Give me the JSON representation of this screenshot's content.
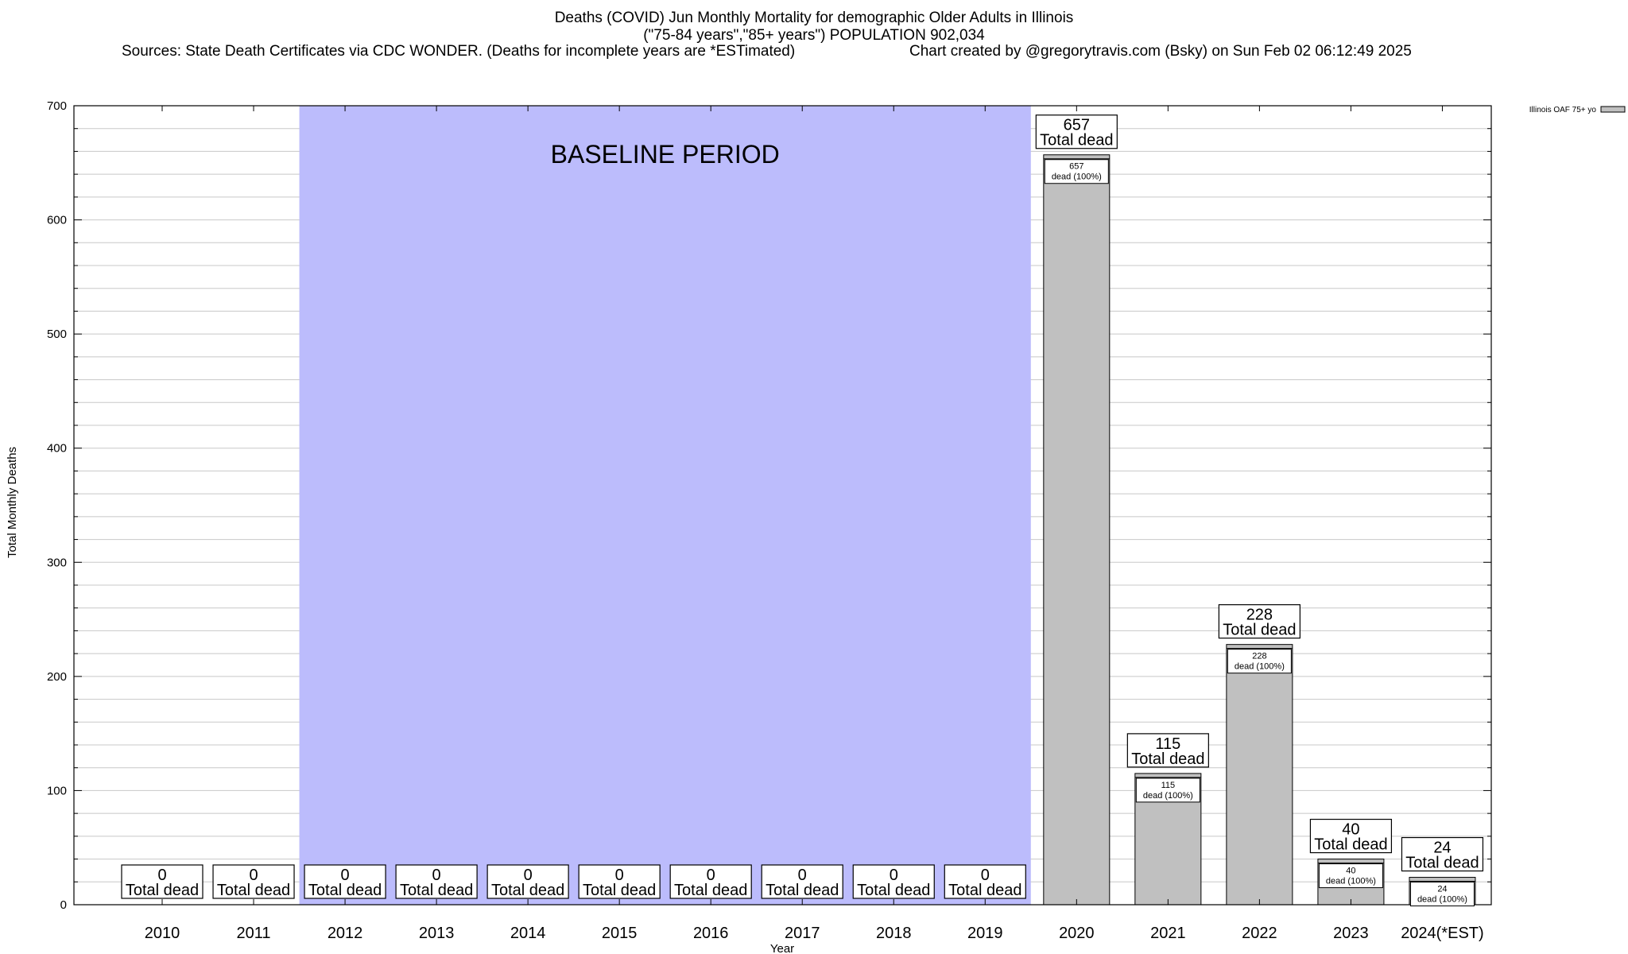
{
  "chart_data": {
    "type": "bar",
    "title": "Deaths (COVID) Jun Monthly Mortality for demographic Older Adults in Illinois",
    "subtitle": "(\"75-84 years\",\"85+ years\") POPULATION 902,034",
    "sources": "Sources: State Death Certificates via CDC WONDER. (Deaths for incomplete years are *ESTimated)",
    "credit": "Chart created by @gregorytravis.com (Bsky) on Sun Feb 02 06:12:49 2025",
    "xlabel": "Year",
    "ylabel": "Total Monthly Deaths",
    "ylim": [
      0,
      700
    ],
    "yticks": [
      0,
      100,
      200,
      300,
      400,
      500,
      600,
      700
    ],
    "grid": true,
    "legend": {
      "position": "top-right",
      "entries": [
        "Illinois OAF 75+ yo"
      ]
    },
    "categories": [
      "2010",
      "2011",
      "2012",
      "2013",
      "2014",
      "2015",
      "2016",
      "2017",
      "2018",
      "2019",
      "2020",
      "2021",
      "2022",
      "2023",
      "2024(*EST)"
    ],
    "series": [
      {
        "name": "Illinois OAF 75+ yo",
        "values": [
          0,
          0,
          0,
          0,
          0,
          0,
          0,
          0,
          0,
          0,
          657,
          115,
          228,
          40,
          24
        ],
        "color": "#c0c0c0"
      }
    ],
    "total_label_suffix": "Total dead",
    "inner_label_suffix": "dead (100%)",
    "baseline_period": {
      "label": "BASELINE PERIOD",
      "from": "2012",
      "to": "2019",
      "color": "#bcbcfc"
    }
  }
}
